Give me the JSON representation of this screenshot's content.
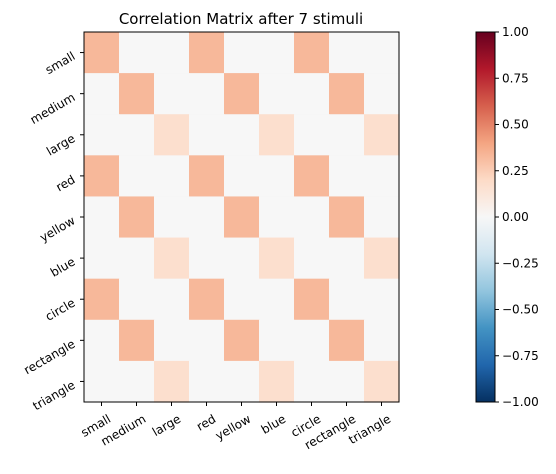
{
  "chart_data": {
    "type": "heatmap",
    "title": "Correlation Matrix after 7 stimuli",
    "xlabel": "",
    "ylabel": "",
    "x_categories": [
      "small",
      "medium",
      "large",
      "red",
      "yellow",
      "blue",
      "circle",
      "rectangle",
      "triangle"
    ],
    "y_categories": [
      "small",
      "medium",
      "large",
      "red",
      "yellow",
      "blue",
      "circle",
      "rectangle",
      "triangle"
    ],
    "values": [
      [
        0.33,
        0,
        0,
        0.33,
        0,
        0,
        0.33,
        0,
        0
      ],
      [
        0,
        0.33,
        0,
        0,
        0.33,
        0,
        0,
        0.33,
        0
      ],
      [
        0,
        0,
        0.17,
        0,
        0,
        0.17,
        0,
        0,
        0.17
      ],
      [
        0.33,
        0,
        0,
        0.33,
        0,
        0,
        0.33,
        0,
        0
      ],
      [
        0,
        0.33,
        0,
        0,
        0.33,
        0,
        0,
        0.33,
        0
      ],
      [
        0,
        0,
        0.17,
        0,
        0,
        0.17,
        0,
        0,
        0.17
      ],
      [
        0.33,
        0,
        0,
        0.33,
        0,
        0,
        0.33,
        0,
        0
      ],
      [
        0,
        0.33,
        0,
        0,
        0.33,
        0,
        0,
        0.33,
        0
      ],
      [
        0,
        0,
        0.17,
        0,
        0,
        0.17,
        0,
        0,
        0.17
      ]
    ],
    "colormap": "RdBu_r",
    "vmin": -1,
    "vmax": 1,
    "colorbar_ticks": [
      "1.00",
      "0.75",
      "0.50",
      "0.25",
      "0.00",
      "−0.25",
      "−0.50",
      "−0.75",
      "−1.00"
    ],
    "colorbar_tick_values": [
      1,
      0.75,
      0.5,
      0.25,
      0,
      -0.25,
      -0.5,
      -0.75,
      -1
    ],
    "grid": false,
    "legend": "colorbar-right"
  }
}
